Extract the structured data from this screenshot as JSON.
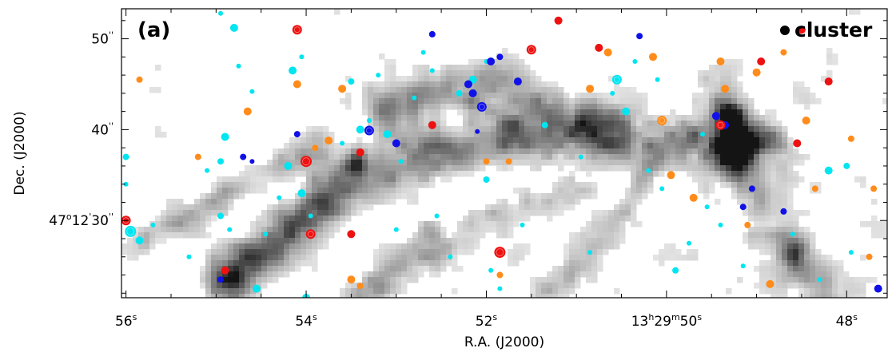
{
  "chart_data": {
    "type": "scatter",
    "panel_label": "(a)",
    "legend": {
      "label": "cluster",
      "marker_color": "#000000",
      "placement": "top-right"
    },
    "x_axis": {
      "title": "R.A. (J2000)",
      "range_sec": [
        56.05,
        47.55
      ],
      "direction": "decreasing-right",
      "ticks": [
        {
          "value": 56,
          "text": "56",
          "sup": "s"
        },
        {
          "value": 54,
          "text": "54",
          "sup": "s"
        },
        {
          "value": 52,
          "text": "52",
          "sup": "s"
        },
        {
          "value": 50,
          "text": "13h29m50",
          "sup": "s",
          "label_parts": [
            "13",
            "h",
            "29",
            "m",
            "50",
            "s"
          ]
        },
        {
          "value": 48,
          "text": "48",
          "sup": "s"
        }
      ]
    },
    "y_axis": {
      "title": "Dec. (J2000)",
      "range_arcsec": [
        21.5,
        53.3
      ],
      "ticks": [
        {
          "value": 50,
          "text": "50",
          "sup": "''"
        },
        {
          "value": 40,
          "text": "40",
          "sup": "''"
        },
        {
          "value": 30,
          "text": "47°12'30",
          "sup": "''",
          "label_parts": [
            "47",
            "o",
            "12",
            "'",
            "30",
            "''"
          ]
        }
      ]
    },
    "background": {
      "kind": "greyscale-intensity-map",
      "filaments": [
        {
          "points": [
            [
              54.9,
              23.5
            ],
            [
              54.4,
              27.5
            ],
            [
              53.9,
              31.5
            ],
            [
              53.4,
              34.5
            ],
            [
              52.9,
              36.5
            ],
            [
              52.4,
              38.0
            ],
            [
              51.9,
              39.0
            ],
            [
              51.4,
              39.5
            ],
            [
              50.9,
              39.5
            ],
            [
              50.4,
              39.0
            ],
            [
              49.9,
              38.5
            ],
            [
              49.4,
              38.5
            ],
            [
              48.9,
              38.0
            ]
          ],
          "width": 22,
          "strength": 0.55
        },
        {
          "points": [
            [
              53.1,
              42.5
            ],
            [
              52.5,
              44.5
            ],
            [
              52.0,
              45.5
            ],
            [
              51.5,
              43.5
            ],
            [
              51.0,
              41.5
            ],
            [
              50.6,
              40.0
            ]
          ],
          "width": 18,
          "strength": 0.38
        },
        {
          "points": [
            [
              49.5,
              44.0
            ],
            [
              49.3,
              40.5
            ],
            [
              49.2,
              37.5
            ],
            [
              49.1,
              33.5
            ],
            [
              48.9,
              29.0
            ],
            [
              48.6,
              25.5
            ],
            [
              48.3,
              22.5
            ]
          ],
          "width": 20,
          "strength": 0.42
        },
        {
          "points": [
            [
              53.4,
              21.8
            ],
            [
              52.9,
              25.0
            ],
            [
              52.4,
              27.8
            ],
            [
              51.9,
              30.5
            ],
            [
              51.4,
              32.5
            ],
            [
              50.9,
              33.5
            ]
          ],
          "width": 16,
          "strength": 0.3
        },
        {
          "points": [
            [
              55.8,
              28.0
            ],
            [
              55.3,
              30.5
            ],
            [
              54.8,
              33.0
            ],
            [
              54.3,
              36.0
            ],
            [
              53.9,
              38.5
            ]
          ],
          "width": 14,
          "strength": 0.25
        },
        {
          "points": [
            [
              50.2,
              36.0
            ],
            [
              50.4,
              32.0
            ],
            [
              50.7,
              28.5
            ],
            [
              51.0,
              25.0
            ],
            [
              51.3,
              22.5
            ]
          ],
          "width": 14,
          "strength": 0.26
        }
      ],
      "cores": [
        [
          54.8,
          23.0,
          16,
          0.55
        ],
        [
          49.25,
          38.0,
          18,
          0.75
        ],
        [
          49.3,
          41.5,
          12,
          0.5
        ],
        [
          52.1,
          42.5,
          12,
          0.45
        ],
        [
          52.65,
          29.0,
          12,
          0.35
        ],
        [
          51.0,
          40.0,
          11,
          0.3
        ],
        [
          48.55,
          26.5,
          12,
          0.32
        ],
        [
          53.45,
          36.5,
          10,
          0.32
        ],
        [
          49.7,
          39.5,
          9,
          0.3
        ]
      ],
      "noise_density": 0.35
    },
    "series": [
      {
        "color": "#00e5f0",
        "points": [
          [
            56.0,
            37.0,
            4
          ],
          [
            56.0,
            34.0,
            3
          ],
          [
            55.95,
            28.8,
            7
          ],
          [
            55.85,
            27.8,
            5
          ],
          [
            55.7,
            29.5,
            3
          ],
          [
            55.3,
            26.0,
            3
          ],
          [
            55.1,
            35.5,
            3
          ],
          [
            54.95,
            52.8,
            3
          ],
          [
            54.8,
            51.2,
            5
          ],
          [
            54.9,
            39.2,
            5
          ],
          [
            54.95,
            36.5,
            4
          ],
          [
            54.95,
            30.5,
            4
          ],
          [
            54.85,
            29.0,
            3
          ],
          [
            54.75,
            47.0,
            3
          ],
          [
            54.6,
            44.2,
            3
          ],
          [
            54.55,
            22.5,
            5
          ],
          [
            54.45,
            28.5,
            3
          ],
          [
            54.3,
            32.5,
            3
          ],
          [
            54.2,
            36.0,
            5
          ],
          [
            54.15,
            46.5,
            5
          ],
          [
            54.05,
            33.0,
            5
          ],
          [
            54.05,
            48.0,
            3
          ],
          [
            54.0,
            21.5,
            5
          ],
          [
            53.95,
            30.5,
            3
          ],
          [
            53.6,
            38.5,
            3
          ],
          [
            53.5,
            45.3,
            4
          ],
          [
            53.4,
            40.0,
            5
          ],
          [
            53.3,
            41.0,
            3
          ],
          [
            53.2,
            46.0,
            3
          ],
          [
            53.1,
            39.5,
            5
          ],
          [
            53.0,
            29.0,
            3
          ],
          [
            52.95,
            36.5,
            3
          ],
          [
            52.8,
            43.5,
            3
          ],
          [
            52.7,
            48.5,
            3
          ],
          [
            52.6,
            46.5,
            3
          ],
          [
            52.55,
            30.5,
            3
          ],
          [
            52.4,
            26.0,
            3
          ],
          [
            52.3,
            44.0,
            4
          ],
          [
            52.15,
            45.5,
            5
          ],
          [
            52.0,
            47.5,
            3
          ],
          [
            52.0,
            34.5,
            4
          ],
          [
            51.95,
            24.5,
            3
          ],
          [
            51.85,
            22.5,
            3
          ],
          [
            51.6,
            29.5,
            3
          ],
          [
            51.35,
            40.5,
            4
          ],
          [
            50.95,
            37.0,
            3
          ],
          [
            50.85,
            26.5,
            3
          ],
          [
            50.6,
            44.0,
            3
          ],
          [
            50.55,
            45.5,
            6
          ],
          [
            50.45,
            42.0,
            5
          ],
          [
            50.35,
            47.5,
            3
          ],
          [
            50.2,
            35.5,
            3
          ],
          [
            50.1,
            45.5,
            3
          ],
          [
            50.05,
            33.5,
            3
          ],
          [
            49.9,
            24.5,
            4
          ],
          [
            49.75,
            27.5,
            3
          ],
          [
            49.6,
            39.5,
            3
          ],
          [
            49.55,
            31.5,
            3
          ],
          [
            49.4,
            29.5,
            3
          ],
          [
            49.15,
            25.0,
            3
          ],
          [
            48.6,
            28.5,
            3
          ],
          [
            48.3,
            23.5,
            3
          ],
          [
            48.2,
            35.5,
            5
          ],
          [
            48.0,
            36.0,
            4
          ],
          [
            47.95,
            26.5,
            3
          ]
        ]
      },
      {
        "color": "#1010e8",
        "points": [
          [
            54.95,
            23.5,
            4
          ],
          [
            54.7,
            37.0,
            4
          ],
          [
            54.6,
            36.5,
            3
          ],
          [
            54.1,
            39.5,
            4
          ],
          [
            53.3,
            39.9,
            6
          ],
          [
            53.0,
            38.5,
            5
          ],
          [
            52.6,
            50.5,
            4
          ],
          [
            52.2,
            45.0,
            5
          ],
          [
            52.15,
            44.0,
            5
          ],
          [
            52.1,
            39.8,
            3
          ],
          [
            52.05,
            42.5,
            6
          ],
          [
            51.95,
            47.5,
            5
          ],
          [
            51.85,
            48.0,
            4
          ],
          [
            51.65,
            45.3,
            5
          ],
          [
            50.3,
            50.3,
            4
          ],
          [
            49.45,
            41.5,
            5
          ],
          [
            49.35,
            40.5,
            5
          ],
          [
            49.15,
            31.5,
            4
          ],
          [
            49.05,
            33.5,
            4
          ],
          [
            48.7,
            31.0,
            4
          ],
          [
            47.65,
            22.5,
            5
          ]
        ]
      },
      {
        "color": "#ff8c1a",
        "points": [
          [
            55.85,
            45.5,
            4
          ],
          [
            55.2,
            37.0,
            4
          ],
          [
            54.65,
            42.0,
            5
          ],
          [
            54.1,
            45.0,
            5
          ],
          [
            53.9,
            38.0,
            4
          ],
          [
            53.75,
            38.8,
            5
          ],
          [
            53.6,
            44.5,
            5
          ],
          [
            53.5,
            23.5,
            5
          ],
          [
            53.4,
            22.8,
            4
          ],
          [
            52.0,
            36.5,
            4
          ],
          [
            51.75,
            36.5,
            4
          ],
          [
            51.85,
            24.0,
            4
          ],
          [
            50.85,
            44.5,
            5
          ],
          [
            50.65,
            48.5,
            5
          ],
          [
            50.15,
            48.0,
            5
          ],
          [
            50.05,
            41.0,
            6
          ],
          [
            49.95,
            35.0,
            5
          ],
          [
            49.7,
            32.5,
            5
          ],
          [
            49.4,
            47.5,
            5
          ],
          [
            49.35,
            44.5,
            5
          ],
          [
            49.1,
            29.5,
            4
          ],
          [
            49.0,
            46.3,
            5
          ],
          [
            48.85,
            23.0,
            5
          ],
          [
            48.7,
            48.5,
            4
          ],
          [
            48.45,
            41.0,
            5
          ],
          [
            48.35,
            33.5,
            4
          ],
          [
            47.95,
            39.0,
            4
          ],
          [
            47.75,
            26.0,
            4
          ],
          [
            47.7,
            33.5,
            4
          ]
        ]
      },
      {
        "color": "#ee1111",
        "points": [
          [
            56.0,
            30.0,
            6
          ],
          [
            54.9,
            24.5,
            5
          ],
          [
            54.1,
            51.0,
            6
          ],
          [
            54.0,
            36.5,
            7
          ],
          [
            53.95,
            28.5,
            6
          ],
          [
            53.5,
            28.5,
            5
          ],
          [
            53.4,
            37.5,
            5
          ],
          [
            52.6,
            40.5,
            5
          ],
          [
            51.85,
            26.5,
            7
          ],
          [
            51.5,
            48.8,
            6
          ],
          [
            51.2,
            52.0,
            5
          ],
          [
            50.75,
            49.0,
            5
          ],
          [
            49.4,
            40.5,
            6
          ],
          [
            48.95,
            47.5,
            5
          ],
          [
            48.55,
            38.5,
            5
          ],
          [
            48.5,
            51.0,
            5
          ],
          [
            48.2,
            45.3,
            5
          ]
        ]
      }
    ]
  }
}
